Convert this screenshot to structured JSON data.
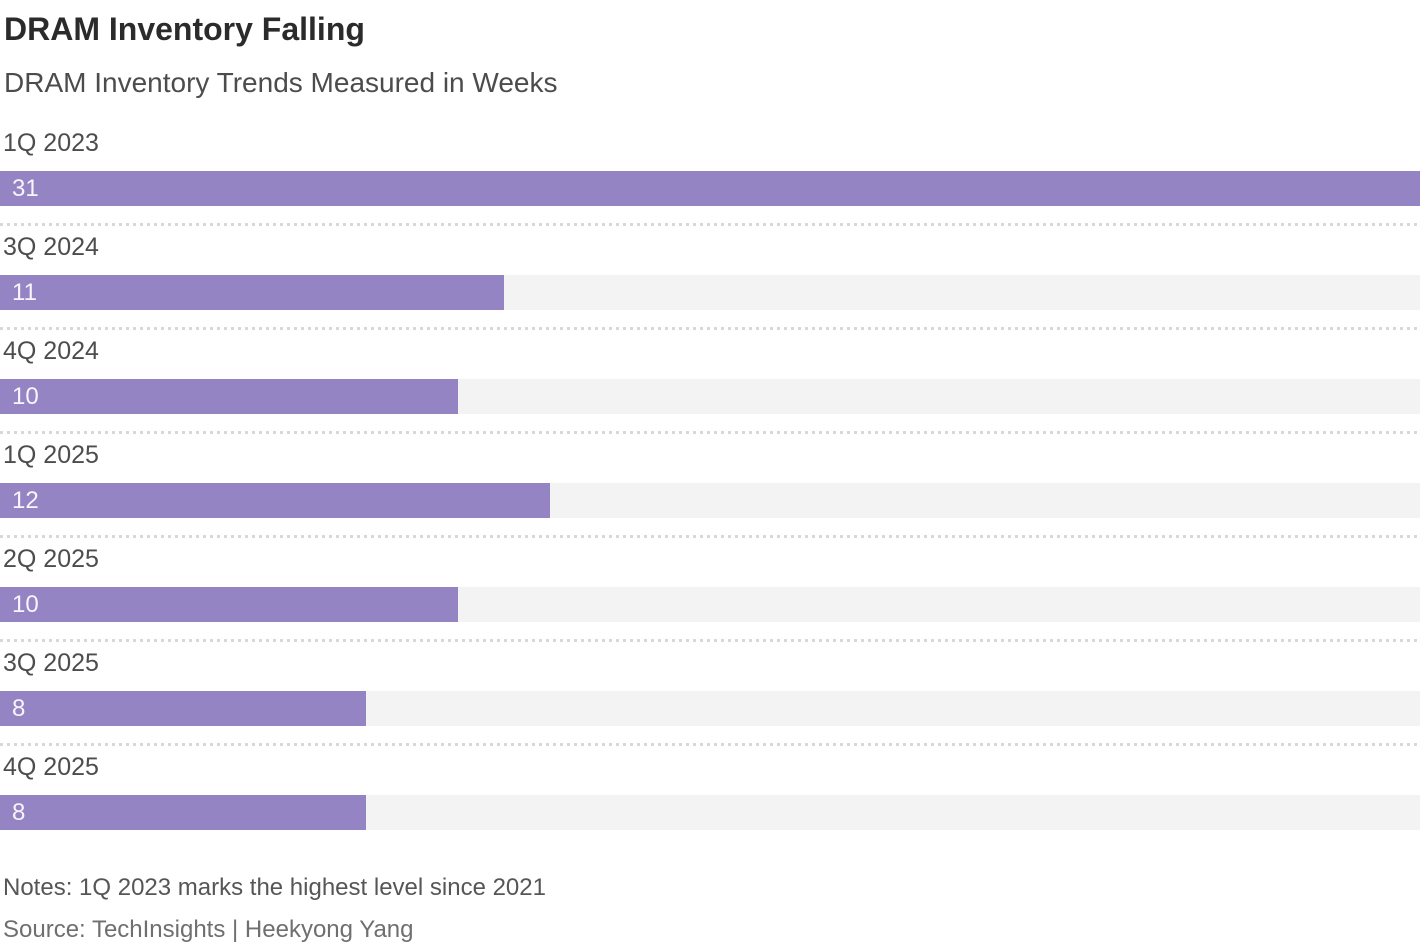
{
  "header": {
    "title": "DRAM Inventory Falling",
    "subtitle": "DRAM Inventory Trends Measured in Weeks"
  },
  "chart_data": {
    "type": "bar",
    "orientation": "horizontal",
    "title": "DRAM Inventory Falling",
    "subtitle": "DRAM Inventory Trends Measured in Weeks",
    "unit": "weeks",
    "categories": [
      "1Q 2023",
      "3Q 2024",
      "4Q 2024",
      "1Q 2025",
      "2Q 2025",
      "3Q 2025",
      "4Q 2025"
    ],
    "values": [
      31,
      11,
      10,
      12,
      10,
      8,
      8
    ],
    "xlim": [
      0,
      31
    ],
    "grid": "off",
    "legend": "none",
    "value_labels": "inside-left",
    "bar_color": "#9484c4",
    "track_color": "#f3f3f3",
    "value_label_color": "#f7f5fa",
    "separator_color": "#d8d8d8"
  },
  "footer": {
    "notes": "Notes: 1Q 2023 marks the highest level since 2021",
    "source": "Source: TechInsights | Heekyong Yang"
  }
}
